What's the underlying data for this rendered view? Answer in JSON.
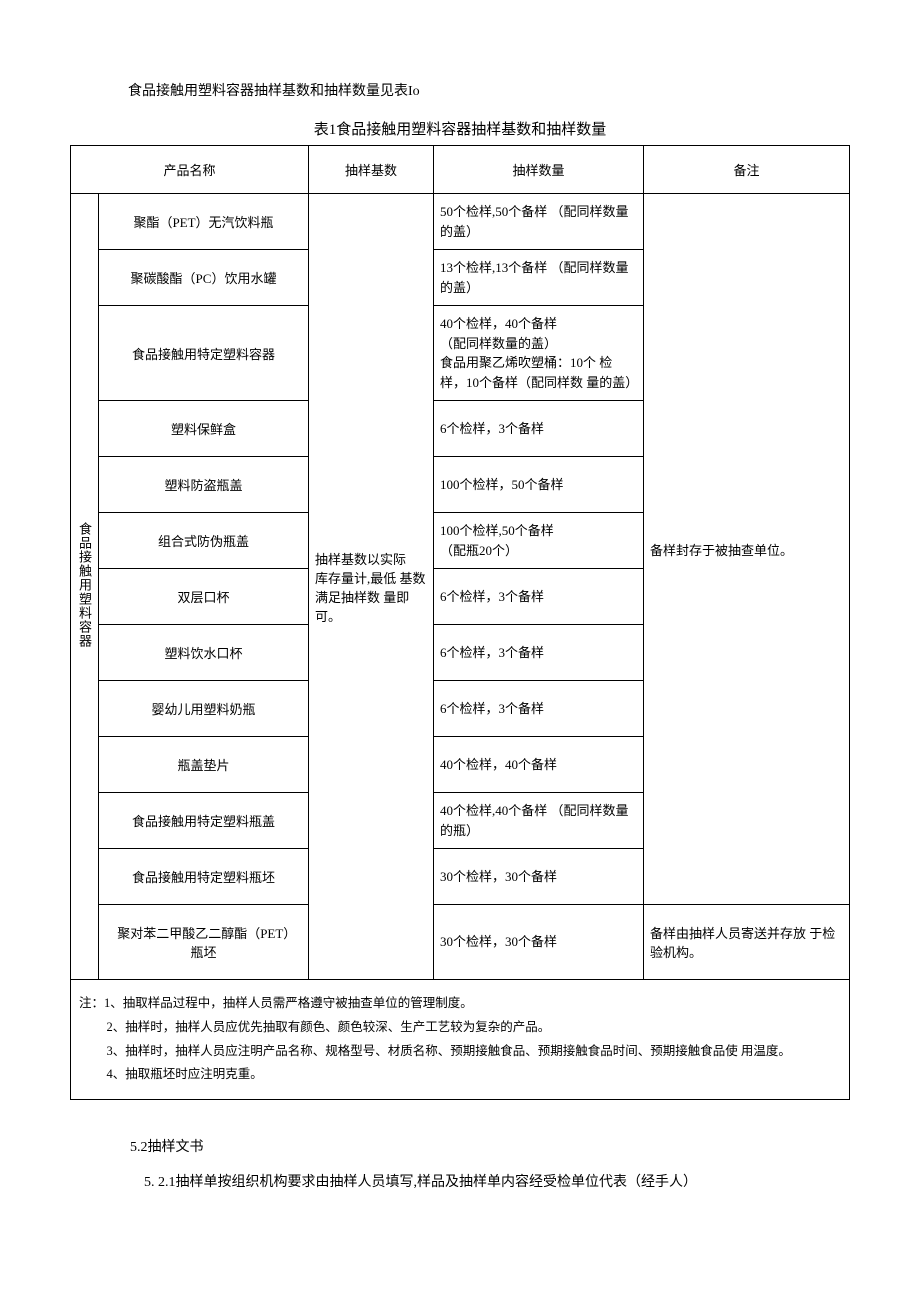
{
  "intro": "食品接触用塑料容器抽样基数和抽样数量见表Io",
  "tableTitle": "表1食品接触用塑料容器抽样基数和抽样数量",
  "headers": {
    "name": "产品名称",
    "basis": "抽样基数",
    "qty": "抽样数量",
    "remark": "备注"
  },
  "category": "食品接触用塑料容器",
  "basisText": "抽样基数以实际　库存量计,最低 基数满足抽样数 量即可。",
  "remark1": "备样封存于被抽查单位。",
  "remark2": "备样由抽样人员寄送并存放 于检验机构。",
  "rows": [
    {
      "name": "聚酯（PET）无汽饮料瓶",
      "qty": "50个检样,50个备样 （配同样数量的盖）"
    },
    {
      "name": "聚碳酸酯（PC）饮用水罐",
      "qty": "13个检样,13个备样 （配同样数量的盖）"
    },
    {
      "name": "食品接触用特定塑料容器",
      "qty": "40个检样，40个备样\n（配同样数量的盖）\n食品用聚乙烯吹塑桶：10个 检样，10个备样（配同样数 量的盖）"
    },
    {
      "name": "塑料保鲜盒",
      "qty": "6个检样，3个备样"
    },
    {
      "name": "塑料防盗瓶盖",
      "qty": "100个检样，50个备样"
    },
    {
      "name": "组合式防伪瓶盖",
      "qty": "100个检样,50个备样\n（配瓶20个）"
    },
    {
      "name": "双层口杯",
      "qty": "6个检样，3个备样"
    },
    {
      "name": "塑料饮水口杯",
      "qty": "6个检样，3个备样"
    },
    {
      "name": "婴幼儿用塑料奶瓶",
      "qty": "6个检样，3个备样"
    },
    {
      "name": "瓶盖垫片",
      "qty": "40个检样，40个备样"
    },
    {
      "name": "食品接触用特定塑料瓶盖",
      "qty": "40个检样,40个备样 （配同样数量的瓶）"
    },
    {
      "name": "食品接触用特定塑料瓶坯",
      "qty": "30个检样，30个备样"
    },
    {
      "name": "聚对苯二甲酸乙二醇酯（PET）　瓶坯",
      "qty": "30个检样，30个备样"
    }
  ],
  "notes": {
    "n1": "注：1、抽取样品过程中，抽样人员需严格遵守被抽查单位的管理制度。",
    "n2": "2、抽样时，抽样人员应优先抽取有颜色、颜色较深、生产工艺较为复杂的产品。",
    "n3": "3、抽样时，抽样人员应注明产品名称、规格型号、材质名称、预期接触食品、预期接触食品时间、预期接触食品使 用温度。",
    "n4": "4、抽取瓶坯时应注明克重。"
  },
  "section52": "5.2抽样文书",
  "section521": "5. 2.1抽样单按组织机构要求由抽样人员填写,样品及抽样单内容经受检单位代表（经手人）"
}
